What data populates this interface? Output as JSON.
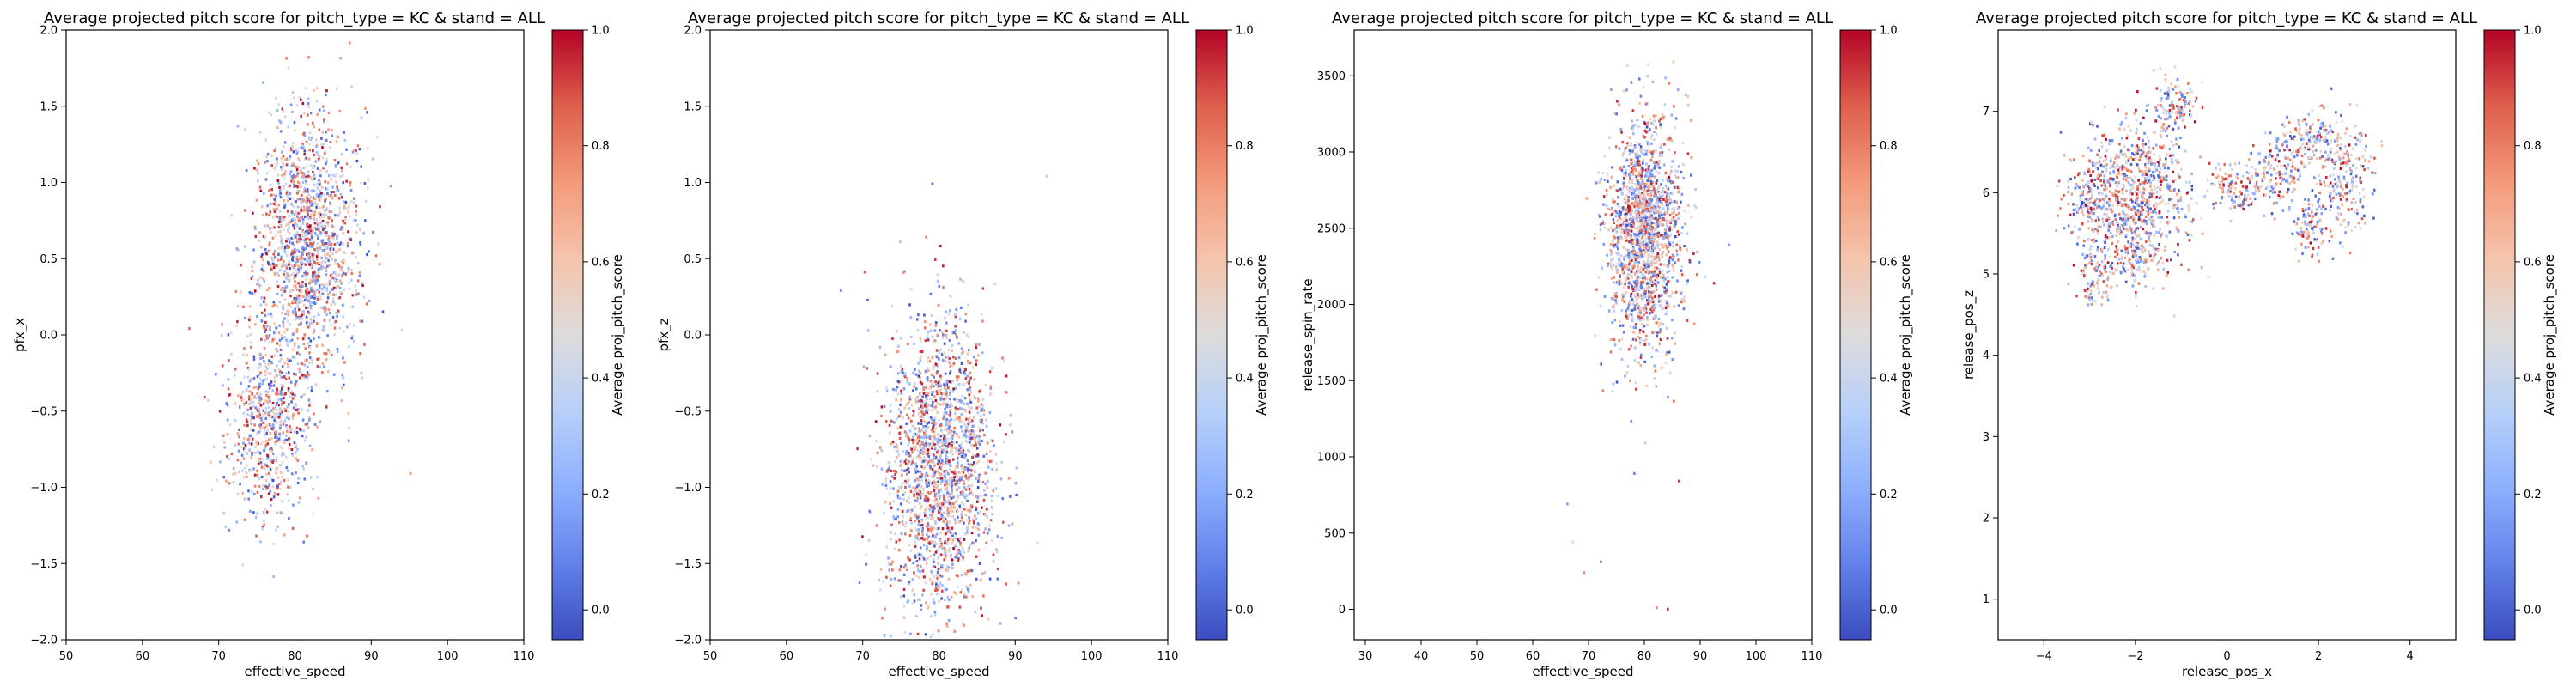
{
  "colormap": {
    "name": "coolwarm",
    "stops": [
      "#3b4cc0",
      "#6282ea",
      "#8db0fe",
      "#b8d0f9",
      "#dddcdc",
      "#f5c4ac",
      "#f49a7b",
      "#de604d",
      "#b40426"
    ]
  },
  "chart_data": [
    {
      "type": "heatmap",
      "title": "Average projected pitch score for pitch_type = KC & stand = ALL",
      "xlabel": "effective_speed",
      "ylabel": "pfx_x",
      "colorbar_label": "Average proj_pitch_score",
      "xlim": [
        50,
        110
      ],
      "ylim": [
        -2.0,
        2.0
      ],
      "xticks": [
        50,
        60,
        70,
        80,
        90,
        100,
        110
      ],
      "xtick_labels": [
        "50",
        "60",
        "70",
        "80",
        "90",
        "100",
        "110"
      ],
      "yticks": [
        -2.0,
        -1.5,
        -1.0,
        -0.5,
        0.0,
        0.5,
        1.0,
        1.5,
        2.0
      ],
      "ytick_labels": [
        "−2.0",
        "−1.5",
        "−1.0",
        "−0.5",
        "0.0",
        "0.5",
        "1.0",
        "1.5",
        "2.0"
      ],
      "clim": [
        -0.05,
        1.0
      ],
      "cticks": [
        0.0,
        0.2,
        0.4,
        0.6,
        0.8,
        1.0
      ],
      "ctick_labels": [
        "0.0",
        "0.2",
        "0.4",
        "0.6",
        "0.8",
        "1.0"
      ],
      "clusters": [
        {
          "x": 81.5,
          "y": 0.6,
          "sx": 3.4,
          "sy": 0.42,
          "n": 1500
        },
        {
          "x": 76.5,
          "y": -0.55,
          "sx": 2.8,
          "sy": 0.32,
          "n": 650
        }
      ],
      "sparse": [
        {
          "x": 66,
          "y": 0.05
        },
        {
          "x": 95,
          "y": -0.9
        },
        {
          "x": 73,
          "y": -1.5
        },
        {
          "x": 68,
          "y": -0.4
        },
        {
          "x": 81,
          "y": -1.35
        },
        {
          "x": 88,
          "y": 1.2
        }
      ]
    },
    {
      "type": "heatmap",
      "title": "Average projected pitch score for pitch_type = KC & stand = ALL",
      "xlabel": "effective_speed",
      "ylabel": "pfx_z",
      "colorbar_label": "Average proj_pitch_score",
      "xlim": [
        50,
        110
      ],
      "ylim": [
        -2.0,
        2.0
      ],
      "xticks": [
        50,
        60,
        70,
        80,
        90,
        100,
        110
      ],
      "xtick_labels": [
        "50",
        "60",
        "70",
        "80",
        "90",
        "100",
        "110"
      ],
      "yticks": [
        -2.0,
        -1.5,
        -1.0,
        -0.5,
        0.0,
        0.5,
        1.0,
        1.5,
        2.0
      ],
      "ytick_labels": [
        "−2.0",
        "−1.5",
        "−1.0",
        "−0.5",
        "0.0",
        "0.5",
        "1.0",
        "1.5",
        "2.0"
      ],
      "clim": [
        -0.05,
        1.0
      ],
      "cticks": [
        0.0,
        0.2,
        0.4,
        0.6,
        0.8,
        1.0
      ],
      "ctick_labels": [
        "0.0",
        "0.2",
        "0.4",
        "0.6",
        "0.8",
        "1.0"
      ],
      "clusters": [
        {
          "x": 80.0,
          "y": -0.85,
          "sx": 3.6,
          "sy": 0.48,
          "n": 1900
        }
      ],
      "sparse": [
        {
          "x": 94,
          "y": 1.05
        },
        {
          "x": 67,
          "y": 0.3
        },
        {
          "x": 70,
          "y": -0.2
        },
        {
          "x": 79,
          "y": 1.0
        },
        {
          "x": 72,
          "y": -1.6
        }
      ]
    },
    {
      "type": "heatmap",
      "title": "Average projected pitch score for pitch_type = KC & stand = ALL",
      "xlabel": "effective_speed",
      "ylabel": "release_spin_rate",
      "colorbar_label": "Average proj_pitch_score",
      "xlim": [
        28,
        110
      ],
      "ylim": [
        -200,
        3800
      ],
      "xticks": [
        30,
        40,
        50,
        60,
        70,
        80,
        90,
        100,
        110
      ],
      "xtick_labels": [
        "30",
        "40",
        "50",
        "60",
        "70",
        "80",
        "90",
        "100",
        "110"
      ],
      "yticks": [
        0,
        500,
        1000,
        1500,
        2000,
        2500,
        3000,
        3500
      ],
      "ytick_labels": [
        "0",
        "500",
        "1000",
        "1500",
        "2000",
        "2500",
        "3000",
        "3500"
      ],
      "clim": [
        -0.05,
        1.0
      ],
      "cticks": [
        0.0,
        0.2,
        0.4,
        0.6,
        0.8,
        1.0
      ],
      "ctick_labels": [
        "0.0",
        "0.2",
        "0.4",
        "0.6",
        "0.8",
        "1.0"
      ],
      "clusters": [
        {
          "x": 80.0,
          "y": 2500,
          "sx": 3.3,
          "sy": 380,
          "n": 1700
        }
      ],
      "sparse": [
        {
          "x": 69,
          "y": 250
        },
        {
          "x": 67,
          "y": 450
        },
        {
          "x": 72,
          "y": 320
        },
        {
          "x": 82,
          "y": 20
        },
        {
          "x": 84,
          "y": 10
        },
        {
          "x": 78,
          "y": 900
        },
        {
          "x": 80,
          "y": 1100
        },
        {
          "x": 86,
          "y": 850
        },
        {
          "x": 95,
          "y": 2400
        },
        {
          "x": 66,
          "y": 700
        },
        {
          "x": 85,
          "y": 3600
        }
      ]
    },
    {
      "type": "heatmap",
      "title": "Average projected pitch score for pitch_type = KC & stand = ALL",
      "xlabel": "release_pos_x",
      "ylabel": "release_pos_z",
      "colorbar_label": "Average proj_pitch_score",
      "xlim": [
        -5,
        5
      ],
      "ylim": [
        0.5,
        8.0
      ],
      "xticks": [
        -4,
        -2,
        0,
        2,
        4
      ],
      "xtick_labels": [
        "−4",
        "−2",
        "0",
        "2",
        "4"
      ],
      "yticks": [
        1,
        2,
        3,
        4,
        5,
        6,
        7
      ],
      "ytick_labels": [
        "1",
        "2",
        "3",
        "4",
        "5",
        "6",
        "7"
      ],
      "clim": [
        -0.05,
        1.0
      ],
      "cticks": [
        0.0,
        0.2,
        0.4,
        0.6,
        0.8,
        1.0
      ],
      "ctick_labels": [
        "0.0",
        "0.2",
        "0.4",
        "0.6",
        "0.8",
        "1.0"
      ],
      "clusters": [
        {
          "x": -2.0,
          "y": 6.0,
          "sx": 0.55,
          "sy": 0.45,
          "n": 800
        },
        {
          "x": -1.2,
          "y": 7.1,
          "sx": 0.25,
          "sy": 0.15,
          "n": 120
        },
        {
          "x": -2.9,
          "y": 4.95,
          "sx": 0.2,
          "sy": 0.2,
          "n": 90
        },
        {
          "x": -3.0,
          "y": 5.9,
          "sx": 0.3,
          "sy": 0.25,
          "n": 160
        },
        {
          "x": 0.2,
          "y": 6.05,
          "sx": 0.35,
          "sy": 0.15,
          "n": 120
        },
        {
          "x": 1.1,
          "y": 6.3,
          "sx": 0.3,
          "sy": 0.25,
          "n": 140
        },
        {
          "x": 2.5,
          "y": 6.2,
          "sx": 0.3,
          "sy": 0.35,
          "n": 230
        },
        {
          "x": 1.8,
          "y": 6.7,
          "sx": 0.3,
          "sy": 0.15,
          "n": 130
        },
        {
          "x": 1.8,
          "y": 5.55,
          "sx": 0.18,
          "sy": 0.18,
          "n": 90
        },
        {
          "x": -2.1,
          "y": 5.2,
          "sx": 0.25,
          "sy": 0.15,
          "n": 100
        }
      ],
      "sparse": []
    }
  ]
}
